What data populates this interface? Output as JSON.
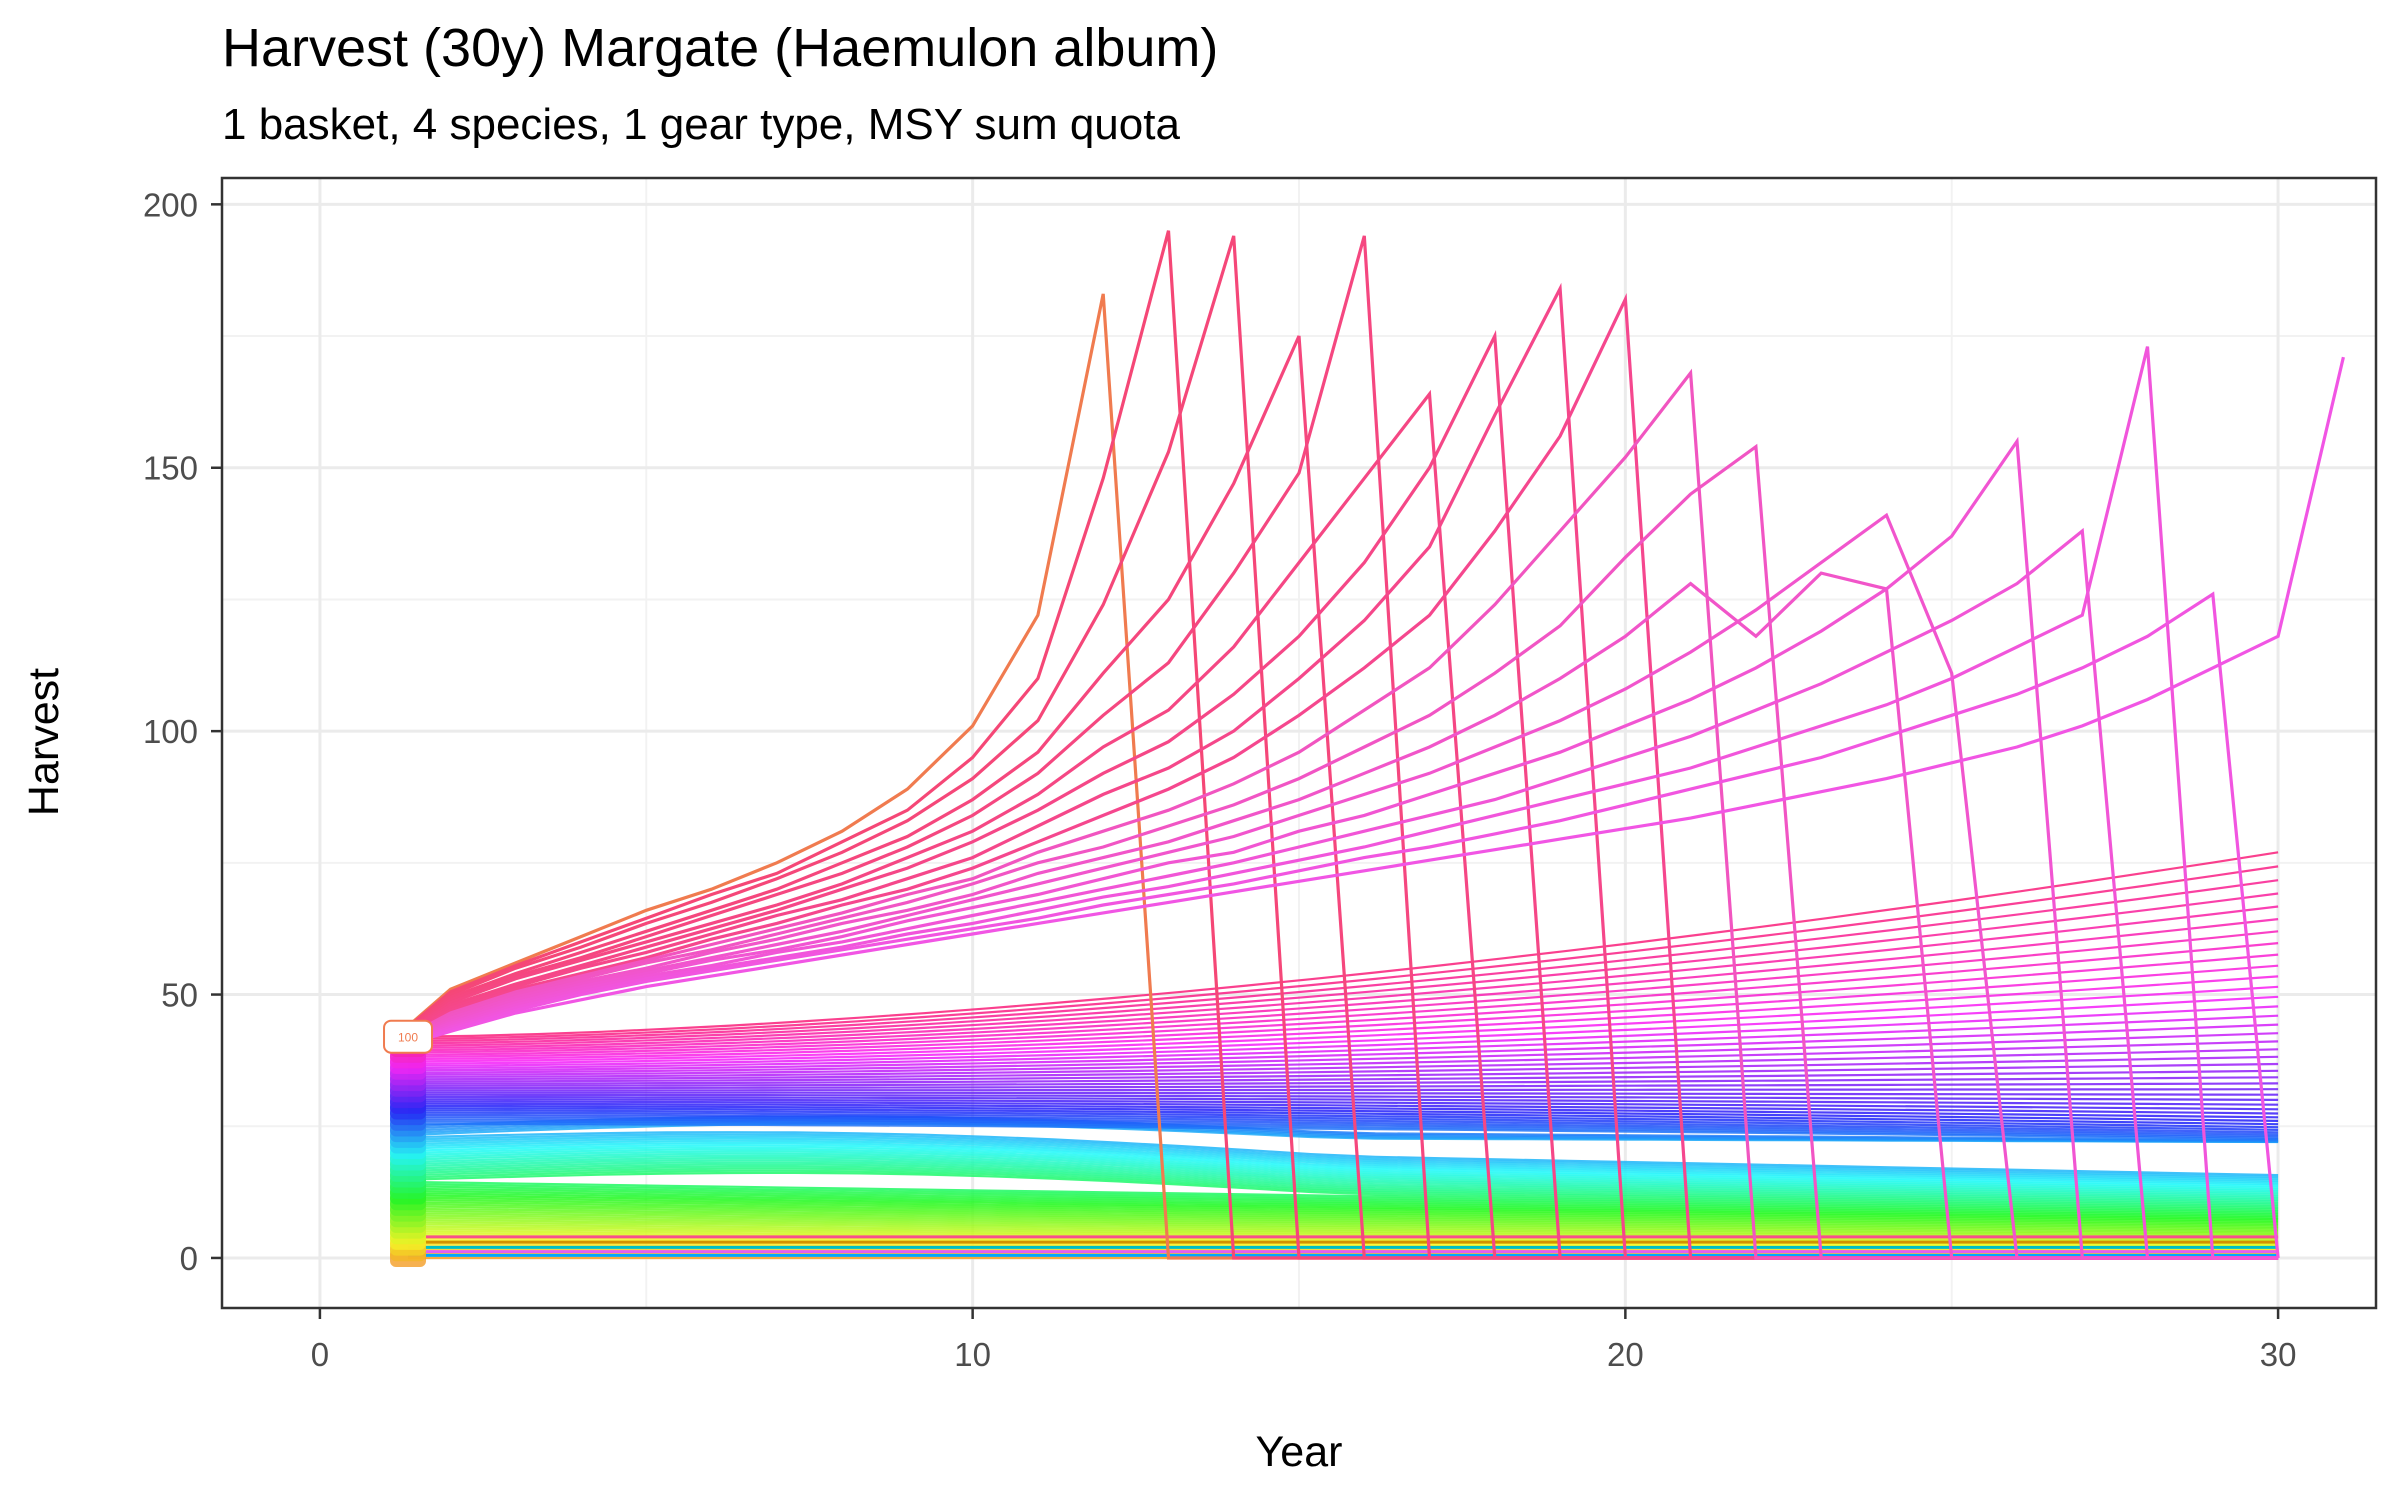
{
  "chart_data": {
    "type": "line",
    "title": "Harvest (30y) Margate (Haemulon album)",
    "subtitle": "1 basket, 4 species, 1 gear type, MSY sum quota",
    "xlabel": "Year",
    "ylabel": "Harvest",
    "xlim": [
      -1.5,
      31.5
    ],
    "ylim": [
      -9.5,
      205
    ],
    "xticks": [
      0,
      10,
      20,
      30
    ],
    "yticks": [
      0,
      50,
      100,
      150,
      200
    ],
    "grid": true,
    "legend": "none",
    "start_label": "100",
    "start_x": 1.35,
    "colors": {
      "start_orange": "#F07B4F",
      "pink": "#F8508C",
      "magenta": "#E45FF0",
      "violet": "#9A85FF",
      "blue": "#00A8FF",
      "teal": "#00BFC4",
      "green": "#00B93A",
      "olive": "#9AAA00",
      "gold": "#D39200"
    },
    "series": [
      {
        "collapse_year": 13,
        "values": [
          44,
          51,
          56,
          61,
          66,
          70,
          75,
          81,
          89,
          101,
          122,
          183,
          0,
          0,
          0,
          0,
          0,
          0,
          0,
          0,
          0,
          0,
          0,
          0,
          0,
          0,
          0,
          0,
          0,
          0
        ]
      },
      {
        "collapse_year": 14,
        "values": [
          43.8,
          50.5,
          55.5,
          60,
          64.5,
          69,
          73,
          79,
          85,
          95,
          110,
          148,
          195,
          0,
          0,
          0,
          0,
          0,
          0,
          0,
          0,
          0,
          0,
          0,
          0,
          0,
          0,
          0,
          0,
          0
        ]
      },
      {
        "collapse_year": 15,
        "values": [
          43.6,
          50,
          55,
          59,
          63.5,
          67.5,
          72,
          77,
          83,
          91,
          102,
          124,
          153,
          194,
          0,
          0,
          0,
          0,
          0,
          0,
          0,
          0,
          0,
          0,
          0,
          0,
          0,
          0,
          0,
          0
        ]
      },
      {
        "collapse_year": 16,
        "values": [
          43.4,
          49.5,
          54,
          58,
          62,
          66,
          70,
          75,
          80,
          87,
          96,
          111,
          125,
          147,
          175,
          0,
          0,
          0,
          0,
          0,
          0,
          0,
          0,
          0,
          0,
          0,
          0,
          0,
          0,
          0
        ]
      },
      {
        "collapse_year": 17,
        "values": [
          43.2,
          49,
          53.5,
          57,
          61,
          65,
          69,
          73,
          78,
          84,
          92,
          103,
          113,
          130,
          149,
          194,
          0,
          0,
          0,
          0,
          0,
          0,
          0,
          0,
          0,
          0,
          0,
          0,
          0,
          0
        ]
      },
      {
        "collapse_year": 18,
        "values": [
          43,
          48.5,
          53,
          56.5,
          60,
          63.5,
          67,
          71,
          76,
          81,
          88,
          97,
          104,
          116,
          132,
          148,
          164,
          0,
          0,
          0,
          0,
          0,
          0,
          0,
          0,
          0,
          0,
          0,
          0,
          0
        ]
      },
      {
        "collapse_year": 19,
        "values": [
          42.8,
          48,
          52,
          55.5,
          59,
          62.5,
          66,
          70,
          74,
          79,
          85,
          92,
          98,
          107,
          118,
          132,
          150,
          175,
          0,
          0,
          0,
          0,
          0,
          0,
          0,
          0,
          0,
          0,
          0,
          0
        ]
      },
      {
        "collapse_year": 20,
        "values": [
          42.6,
          47.5,
          51.5,
          55,
          58,
          61.5,
          65,
          68,
          72,
          76,
          82,
          88,
          93,
          100,
          110,
          121,
          135,
          160,
          184,
          0,
          0,
          0,
          0,
          0,
          0,
          0,
          0,
          0,
          0,
          0
        ]
      },
      {
        "collapse_year": 21,
        "values": [
          42.4,
          47,
          51,
          54,
          57,
          60.5,
          63.5,
          67,
          70,
          74,
          79,
          84,
          89,
          95,
          103,
          112,
          122,
          138,
          156,
          182,
          0,
          0,
          0,
          0,
          0,
          0,
          0,
          0,
          0,
          0
        ]
      },
      {
        "collapse_year": 22,
        "values": [
          42.2,
          46.5,
          50.5,
          53.5,
          56.5,
          59.5,
          62.5,
          65.5,
          69,
          72,
          77,
          81,
          85,
          90,
          96,
          104,
          112,
          124,
          138,
          152,
          168,
          0,
          0,
          0,
          0,
          0,
          0,
          0,
          0,
          0
        ]
      },
      {
        "collapse_year": 23,
        "values": [
          42,
          46,
          50,
          53,
          56,
          58.5,
          61.5,
          64.5,
          67.5,
          71,
          75,
          78,
          82,
          86,
          91,
          97,
          103,
          111,
          120,
          133,
          145,
          154,
          0,
          0,
          0,
          0,
          0,
          0,
          0,
          0
        ]
      },
      {
        "collapse_year": 25,
        "values": [
          41.8,
          45.5,
          49.5,
          52.5,
          55,
          58,
          60.5,
          63.5,
          66,
          69,
          73,
          76,
          79,
          83,
          87,
          92,
          97,
          103,
          110,
          118,
          128,
          118,
          130,
          127,
          0,
          0,
          0,
          0,
          0,
          0
        ]
      },
      {
        "collapse_year": 26,
        "values": [
          41.6,
          45,
          49,
          52,
          54.5,
          57,
          59.5,
          62,
          65,
          68,
          71,
          74,
          77,
          80,
          84,
          88,
          92,
          97,
          102,
          108,
          115,
          123,
          132,
          141,
          111,
          0,
          0,
          0,
          0,
          0
        ]
      },
      {
        "collapse_year": 27,
        "values": [
          41.4,
          44.6,
          48.5,
          51.5,
          54,
          56.5,
          58.5,
          61,
          64,
          66.5,
          69,
          72,
          75,
          77,
          81,
          84,
          88,
          92,
          96,
          101,
          106,
          112,
          119,
          127,
          137,
          155,
          0,
          0,
          0,
          0
        ]
      },
      {
        "collapse_year": 28,
        "values": [
          41.2,
          44.2,
          48,
          51,
          53.5,
          55.5,
          58,
          60,
          62.5,
          65,
          67.5,
          70,
          72.5,
          75,
          78,
          81,
          84,
          87,
          91,
          95,
          99,
          104,
          109,
          115,
          121,
          128,
          138,
          0,
          0,
          0
        ]
      },
      {
        "collapse_year": 29,
        "values": [
          41,
          43.8,
          47.5,
          50.5,
          53,
          55,
          57,
          59,
          61.5,
          63.5,
          66,
          68.5,
          70.5,
          73,
          75.5,
          78,
          81,
          84,
          87,
          90,
          93,
          97,
          101,
          105,
          110,
          116,
          122,
          173,
          0,
          0
        ]
      },
      {
        "collapse_year": 30,
        "values": [
          40.8,
          43.4,
          47,
          50,
          52.5,
          54.5,
          56.5,
          58.5,
          60.5,
          62.5,
          64.5,
          67,
          69,
          71,
          73.5,
          76,
          78,
          80.5,
          83,
          86,
          89,
          92,
          95,
          99,
          103,
          107,
          112,
          118,
          126,
          0
        ]
      },
      {
        "collapse_year": null,
        "values": [
          40.6,
          43,
          46.5,
          49,
          51.5,
          53.5,
          55.5,
          57.5,
          59.5,
          61.5,
          63.5,
          65.5,
          67.5,
          69.5,
          71.5,
          73.5,
          75.5,
          77.5,
          79.5,
          81.5,
          83.5,
          86,
          88.5,
          91,
          94,
          97,
          101,
          106,
          112,
          118,
          171
        ]
      }
    ],
    "fan": {
      "note_years": [
        1.35,
        30
      ],
      "count": 100,
      "start_range": [
        0,
        42
      ],
      "end_values_top": [
        93,
        76,
        67,
        61.5,
        57,
        53.5,
        50.5,
        48,
        46,
        44,
        42,
        40.5,
        39,
        37.5
      ]
    }
  }
}
